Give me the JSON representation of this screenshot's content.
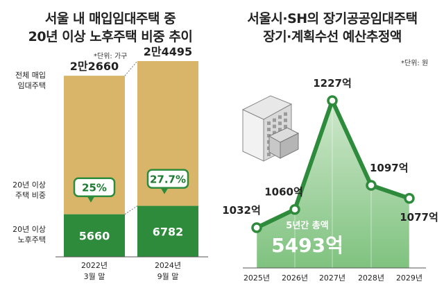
{
  "colors": {
    "tan": "#d8b569",
    "green": "#2e8b3c",
    "green_dark": "#1f7a33",
    "green_fill_top": "#cfe8cc",
    "green_fill_bottom": "#7fc27f",
    "line": "#9a9a9a",
    "text": "#222222"
  },
  "left": {
    "title_line1": "서울 내 매입임대주택 중",
    "title_line2": "20년 이상 노후주택 비중 추이",
    "unit": "*단위: 가구",
    "labels": {
      "total": [
        "전체 매입",
        "임대주택"
      ],
      "share": [
        "20년 이상",
        "주택 비중"
      ],
      "old": [
        "20년 이상",
        "노후주택"
      ]
    }
  },
  "right": {
    "title_line1": "서울시·SH의 장기공공임대주택",
    "title_line2": "장기·계획수선 예산추정액",
    "unit": "*단위: 원",
    "total_label": "5년간 총액",
    "total_value": "5493억"
  },
  "chart_data": [
    {
      "type": "bar",
      "title": "서울 내 매입임대주택 중 20년 이상 노후주택 비중 추이",
      "categories": [
        [
          "2022년",
          "3월 말"
        ],
        [
          "2024년",
          "9월 말"
        ]
      ],
      "series": [
        {
          "name": "전체 매입 임대주택",
          "values": [
            22660,
            24495
          ],
          "labels": [
            "2만2660",
            "2만4495"
          ]
        },
        {
          "name": "20년 이상 노후주택",
          "values": [
            5660,
            6782
          ],
          "labels": [
            "5660",
            "6782"
          ]
        },
        {
          "name": "20년 이상 주택 비중",
          "values": [
            25,
            27.7
          ],
          "labels": [
            "25%",
            "27.7%"
          ]
        }
      ],
      "ylim": [
        0,
        24495
      ]
    },
    {
      "type": "line",
      "title": "서울시·SH의 장기공공임대주택 장기·계획수선 예산추정액",
      "categories": [
        "2025년",
        "2026년",
        "2027년",
        "2028년",
        "2029년"
      ],
      "values": [
        1032,
        1060,
        1227,
        1097,
        1077
      ],
      "labels": [
        "1032억",
        "1060억",
        "1227억",
        "1097억",
        "1077억"
      ],
      "ylim": [
        1020,
        1227
      ]
    }
  ]
}
